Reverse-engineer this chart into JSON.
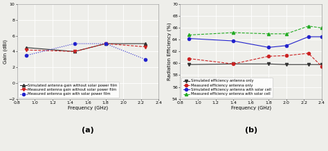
{
  "plot_a": {
    "title": "(a)",
    "xlabel": "Frequency (GHz)",
    "ylabel": "Gain (dBi)",
    "xlim": [
      0.8,
      2.4
    ],
    "ylim": [
      -2,
      10
    ],
    "yticks": [
      -2,
      0,
      2,
      4,
      6,
      8,
      10
    ],
    "xticks": [
      0.8,
      1.0,
      1.2,
      1.4,
      1.6,
      1.8,
      2.0,
      2.2,
      2.4
    ],
    "series": [
      {
        "label": "Simulated antenna gain without solar power film",
        "x": [
          0.9,
          1.45,
          1.8,
          2.25
        ],
        "y": [
          4.5,
          4.0,
          5.0,
          5.0
        ],
        "color": "#333333",
        "linestyle": "-",
        "marker": "^",
        "markersize": 3,
        "linewidth": 0.8
      },
      {
        "label": "Measured antenna gain without solar power film",
        "x": [
          0.9,
          1.45,
          1.8,
          2.25
        ],
        "y": [
          4.2,
          4.0,
          5.0,
          4.6
        ],
        "color": "#cc2222",
        "linestyle": "--",
        "marker": "v",
        "markersize": 3,
        "linewidth": 0.8
      },
      {
        "label": "Measured antenna gain with solar power film",
        "x": [
          0.9,
          1.45,
          1.8,
          2.25
        ],
        "y": [
          3.5,
          5.0,
          5.0,
          3.0
        ],
        "color": "#2222cc",
        "linestyle": ":",
        "marker": "o",
        "markersize": 3,
        "linewidth": 0.8
      }
    ]
  },
  "plot_b": {
    "title": "(b)",
    "xlabel": "Frequency (GHz)",
    "ylabel": "Radiation Efficiency (%)",
    "xlim": [
      0.8,
      2.4
    ],
    "ylim": [
      54,
      70
    ],
    "yticks": [
      54,
      56,
      58,
      60,
      62,
      64,
      66,
      68,
      70
    ],
    "xticks": [
      0.8,
      1.0,
      1.2,
      1.4,
      1.6,
      1.8,
      2.0,
      2.2,
      2.4
    ],
    "series": [
      {
        "label": "Simulated efficiency antenna only",
        "x": [
          0.9,
          1.4,
          1.8,
          2.0,
          2.25,
          2.4
        ],
        "y": [
          59.8,
          59.9,
          59.9,
          59.8,
          59.8,
          59.8
        ],
        "color": "#333333",
        "linestyle": "-",
        "marker": "v",
        "markersize": 3,
        "linewidth": 0.8
      },
      {
        "label": "Measured efficiency antenna only",
        "x": [
          0.9,
          1.4,
          1.8,
          2.0,
          2.25,
          2.4
        ],
        "y": [
          60.8,
          59.9,
          61.2,
          61.3,
          61.7,
          59.5
        ],
        "color": "#cc2222",
        "linestyle": "--",
        "marker": "o",
        "markersize": 3,
        "linewidth": 0.8
      },
      {
        "label": "Simulated efficiency antenna with solar cell",
        "x": [
          0.9,
          1.4,
          1.8,
          2.0,
          2.25,
          2.4
        ],
        "y": [
          64.2,
          63.8,
          62.7,
          63.0,
          64.5,
          64.5
        ],
        "color": "#2222cc",
        "linestyle": "-",
        "marker": "o",
        "markersize": 3,
        "linewidth": 0.8
      },
      {
        "label": "Measured efficiency antenna with solar cell",
        "x": [
          0.9,
          1.4,
          1.8,
          2.0,
          2.25,
          2.4
        ],
        "y": [
          64.8,
          65.2,
          65.0,
          65.0,
          66.3,
          66.0
        ],
        "color": "#22aa22",
        "linestyle": "--",
        "marker": "^",
        "markersize": 3,
        "linewidth": 0.8
      }
    ]
  },
  "bg_color": "#eeeeea",
  "grid_color": "#ffffff",
  "fig_width": 4.74,
  "fig_height": 2.18,
  "dpi": 100,
  "title_fontsize": 8,
  "label_fontsize": 5,
  "tick_fontsize": 4.5,
  "legend_fontsize": 3.8
}
